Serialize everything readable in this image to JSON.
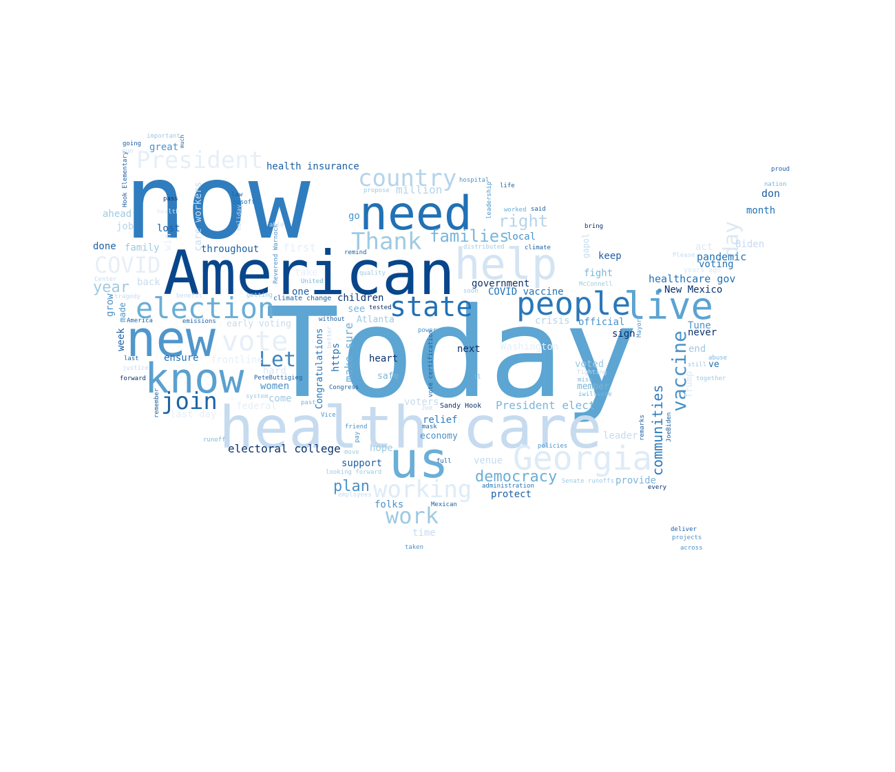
{
  "word_cloud": {
    "shape": "united-states-map",
    "palette": [
      "#08306b",
      "#08519c",
      "#2171b5",
      "#4292c6",
      "#6baed6",
      "#9ecae1",
      "#c6dbef",
      "#deebf7"
    ],
    "words": [
      {
        "text": "Today",
        "color": "#5da5d2"
      },
      {
        "text": "now",
        "color": "#2f7dbf"
      },
      {
        "text": "health care",
        "color": "#c6dbef"
      },
      {
        "text": "American",
        "color": "#08468c"
      },
      {
        "text": "need",
        "color": "#2171b5"
      },
      {
        "text": "us",
        "color": "#6baed6"
      },
      {
        "text": "new",
        "color": "#4f96cc"
      },
      {
        "text": "help",
        "color": "#d4e4f3"
      },
      {
        "text": "know",
        "color": "#5aa0d0"
      },
      {
        "text": "live",
        "color": "#5ba3d3"
      },
      {
        "text": "Georgia",
        "color": "#deebf7"
      },
      {
        "text": "people",
        "color": "#2a77ba"
      },
      {
        "text": "election",
        "color": "#6aaed6"
      },
      {
        "text": "state",
        "color": "#2171b5"
      },
      {
        "text": "country",
        "color": "#b5d4ea"
      },
      {
        "text": "vote",
        "color": "#e6eff8"
      },
      {
        "text": "Thank",
        "color": "#9ecae1"
      },
      {
        "text": "join",
        "color": "#1e64a8"
      },
      {
        "text": "President",
        "color": "#e6eff8"
      },
      {
        "text": "Let",
        "color": "#3d85c2"
      },
      {
        "text": "work",
        "color": "#9ecae1"
      },
      {
        "text": "working",
        "color": "#deebf7"
      },
      {
        "text": "COVID",
        "color": "#e6eff8"
      },
      {
        "text": "vaccine",
        "color": "#4a92c8"
      },
      {
        "text": "day",
        "color": "#dbe9f6"
      },
      {
        "text": "democracy",
        "color": "#6aaed6"
      },
      {
        "text": "families",
        "color": "#7ab6d9"
      },
      {
        "text": "right",
        "color": "#b5d4ea"
      },
      {
        "text": "communities",
        "color": "#2e7abd"
      },
      {
        "text": "year",
        "color": "#9ecae1"
      },
      {
        "text": "plan",
        "color": "#4a92c8"
      },
      {
        "text": "million",
        "color": "#b5d4ea"
      },
      {
        "text": "Biden",
        "color": "#c6dbef"
      },
      {
        "text": "pandemic",
        "color": "#2171b5"
      },
      {
        "text": "healthcare gov",
        "color": "#2171b5"
      },
      {
        "text": "health insurance",
        "color": "#1c5fa3"
      },
      {
        "text": "electoral college",
        "color": "#08306b"
      },
      {
        "text": "President elect",
        "color": "#7ab6d9"
      },
      {
        "text": "COVID vaccine",
        "color": "#2171b5"
      },
      {
        "text": "government",
        "color": "#08306b"
      },
      {
        "text": "New Mexico",
        "color": "#08306b"
      },
      {
        "text": "children",
        "color": "#08306b"
      },
      {
        "text": "heart",
        "color": "#08306b"
      },
      {
        "text": "next",
        "color": "#08306b"
      },
      {
        "text": "make sure",
        "color": "#6aaed6"
      },
      {
        "text": "https",
        "color": "#2171b5"
      },
      {
        "text": "Congratulations",
        "color": "#2171b5"
      },
      {
        "text": "voting",
        "color": "#2171b5"
      },
      {
        "text": "month",
        "color": "#2171b5"
      },
      {
        "text": "don",
        "color": "#1c5fa3"
      },
      {
        "text": "Tune",
        "color": "#4a92c8"
      },
      {
        "text": "never",
        "color": "#08306b"
      },
      {
        "text": "ve",
        "color": "#2171b5"
      },
      {
        "text": "keep",
        "color": "#1c5fa3"
      },
      {
        "text": "fight",
        "color": "#7ab6d9"
      },
      {
        "text": "crisis",
        "color": "#b5d4ea"
      },
      {
        "text": "official",
        "color": "#4a92c8"
      },
      {
        "text": "sign",
        "color": "#08306b"
      },
      {
        "text": "end",
        "color": "#9ecae1"
      },
      {
        "text": "voted",
        "color": "#9ecae1"
      },
      {
        "text": "member",
        "color": "#7ab6d9"
      },
      {
        "text": "Trump",
        "color": "#dbe9f6"
      },
      {
        "text": "act",
        "color": "#dbe9f6"
      },
      {
        "text": "leader",
        "color": "#c6dbef"
      },
      {
        "text": "provide",
        "color": "#7ab6d9"
      },
      {
        "text": "protect",
        "color": "#1c5fa3"
      },
      {
        "text": "support",
        "color": "#1c5fa3"
      },
      {
        "text": "relief",
        "color": "#2e7abd"
      },
      {
        "text": "economy",
        "color": "#4a92c8"
      },
      {
        "text": "hope",
        "color": "#9ecae1"
      },
      {
        "text": "venue",
        "color": "#c6dbef"
      },
      {
        "text": "folks",
        "color": "#4a92c8"
      },
      {
        "text": "time",
        "color": "#c6dbef"
      },
      {
        "text": "voters",
        "color": "#c6dbef"
      },
      {
        "text": "Sandy Hook",
        "color": "#08306b"
      },
      {
        "text": "Atlanta",
        "color": "#9ecae1"
      },
      {
        "text": "see",
        "color": "#7ab6d9"
      },
      {
        "text": "safe",
        "color": "#7ab6d9"
      },
      {
        "text": "one",
        "color": "#1c5fa3"
      },
      {
        "text": "local",
        "color": "#4a92c8"
      },
      {
        "text": "Washington",
        "color": "#e6eff8"
      },
      {
        "text": "first",
        "color": "#e6eff8"
      },
      {
        "text": "go",
        "color": "#4a92c8"
      },
      {
        "text": "throughout",
        "color": "#1c5fa3"
      },
      {
        "text": "care workers",
        "color": "#c6dbef"
      },
      {
        "text": "lost",
        "color": "#1c5fa3"
      },
      {
        "text": "family",
        "color": "#9ecae1"
      },
      {
        "text": "done",
        "color": "#1c5fa3"
      },
      {
        "text": "job",
        "color": "#b5d4ea"
      },
      {
        "text": "ahead",
        "color": "#9ecae1"
      },
      {
        "text": "back",
        "color": "#c6dbef"
      },
      {
        "text": "grow",
        "color": "#4a92c8"
      },
      {
        "text": "made",
        "color": "#4a92c8"
      },
      {
        "text": "week",
        "color": "#1c5fa3"
      },
      {
        "text": "ensure",
        "color": "#2171b5"
      },
      {
        "text": "frontline",
        "color": "#e6eff8"
      },
      {
        "text": "early voting",
        "color": "#c6dbef"
      },
      {
        "text": "hard",
        "color": "#dbe9f6"
      },
      {
        "text": "women",
        "color": "#4a92c8"
      },
      {
        "text": "come",
        "color": "#9ecae1"
      },
      {
        "text": "last day",
        "color": "#e6eff8"
      },
      {
        "text": "federal",
        "color": "#e6eff8"
      },
      {
        "text": "great",
        "color": "#4a92c8"
      },
      {
        "text": "win",
        "color": "#e6eff8"
      },
      {
        "text": "climate change",
        "color": "#1c5fa3"
      },
      {
        "text": "take",
        "color": "#e6eff8"
      },
      {
        "text": "Reverend Warnock",
        "color": "#4a92c8"
      },
      {
        "text": "Hook Elementary",
        "color": "#1c5fa3"
      },
      {
        "text": "going",
        "color": "#1c5fa3"
      },
      {
        "text": "important",
        "color": "#9ecae1"
      },
      {
        "text": "much",
        "color": "#1c5fa3"
      },
      {
        "text": "proud",
        "color": "#1c5fa3"
      },
      {
        "text": "nation",
        "color": "#7ab6d9"
      },
      {
        "text": "hospital",
        "color": "#4a92c8"
      },
      {
        "text": "life",
        "color": "#1c5fa3"
      },
      {
        "text": "leadership",
        "color": "#4a92c8"
      },
      {
        "text": "propose",
        "color": "#9ecae1"
      },
      {
        "text": "law",
        "color": "#1c5fa3"
      },
      {
        "text": "ossoff",
        "color": "#2171b5"
      },
      {
        "text": "pass",
        "color": "#08306b"
      },
      {
        "text": "worked",
        "color": "#6aaed6"
      },
      {
        "text": "said",
        "color": "#1c5fa3"
      },
      {
        "text": "bring",
        "color": "#08306b"
      },
      {
        "text": "distributed",
        "color": "#9ecae1"
      },
      {
        "text": "climate",
        "color": "#1c5fa3"
      },
      {
        "text": "remind",
        "color": "#1c5fa3"
      },
      {
        "text": "quality",
        "color": "#9ecae1"
      },
      {
        "text": "United",
        "color": "#7ab6d9"
      },
      {
        "text": "McConnell",
        "color": "#9ecae1"
      },
      {
        "text": "Please",
        "color": "#c6dbef"
      },
      {
        "text": "tested",
        "color": "#08306b"
      },
      {
        "text": "without",
        "color": "#1c5fa3"
      },
      {
        "text": "emissions",
        "color": "#1c5fa3"
      },
      {
        "text": "America",
        "color": "#1c5fa3"
      },
      {
        "text": "last",
        "color": "#1c5fa3"
      },
      {
        "text": "justice",
        "color": "#c6dbef"
      },
      {
        "text": "forward",
        "color": "#08306b"
      },
      {
        "text": "PeteButtigieg",
        "color": "#1c5fa3"
      },
      {
        "text": "system",
        "color": "#9ecae1"
      },
      {
        "text": "Congress",
        "color": "#1c5fa3"
      },
      {
        "text": "past",
        "color": "#7ab6d9"
      },
      {
        "text": "power",
        "color": "#4a92c8"
      },
      {
        "text": "vote certification",
        "color": "#1c5fa3"
      },
      {
        "text": "Vice",
        "color": "#4a92c8"
      },
      {
        "text": "friend",
        "color": "#4a92c8"
      },
      {
        "text": "mask",
        "color": "#1c5fa3"
      },
      {
        "text": "full",
        "color": "#1c5fa3"
      },
      {
        "text": "pay",
        "color": "#4a92c8"
      },
      {
        "text": "looking forward",
        "color": "#9ecae1"
      },
      {
        "text": "employees",
        "color": "#c6dbef"
      },
      {
        "text": "administration",
        "color": "#2171b5"
      },
      {
        "text": "Mexican",
        "color": "#1c5fa3"
      },
      {
        "text": "Senate runoffs",
        "color": "#9ecae1"
      },
      {
        "text": "every",
        "color": "#08306b"
      },
      {
        "text": "policies",
        "color": "#4a92c8"
      },
      {
        "text": "remarks",
        "color": "#1c5fa3"
      },
      {
        "text": "JoeBiden",
        "color": "#1c5fa3"
      },
      {
        "text": "Mayor",
        "color": "#4a92c8"
      },
      {
        "text": "abuse",
        "color": "#7ab6d9"
      },
      {
        "text": "still",
        "color": "#9ecae1"
      },
      {
        "text": "together",
        "color": "#9ecae1"
      },
      {
        "text": "miss",
        "color": "#7ab6d9"
      },
      {
        "text": "iwillvote",
        "color": "#7ab6d9"
      },
      {
        "text": "fighting",
        "color": "#c6dbef"
      },
      {
        "text": "gapol",
        "color": "#c6dbef"
      },
      {
        "text": "deliver",
        "color": "#1c5fa3"
      },
      {
        "text": "projects",
        "color": "#4a92c8"
      },
      {
        "text": "across",
        "color": "#4a92c8"
      },
      {
        "text": "taken",
        "color": "#4a92c8"
      },
      {
        "text": "runoff",
        "color": "#7ab6d9"
      },
      {
        "text": "remember",
        "color": "#1c5fa3"
      },
      {
        "text": "benefit",
        "color": "#c6dbef"
      },
      {
        "text": "getting",
        "color": "#9ecae1"
      },
      {
        "text": "Center",
        "color": "#c6dbef"
      },
      {
        "text": "tragedy",
        "color": "#c6dbef"
      },
      {
        "text": "soon",
        "color": "#9ecae1"
      },
      {
        "text": "ll",
        "color": "#7ab6d9"
      },
      {
        "text": "better",
        "color": "#c6dbef"
      },
      {
        "text": "able",
        "color": "#c6dbef"
      },
      {
        "text": "holiday",
        "color": "#c6dbef"
      },
      {
        "text": "Joe",
        "color": "#c6dbef"
      },
      {
        "text": "move",
        "color": "#9ecae1"
      },
      {
        "text": "gun",
        "color": "#c6dbef"
      },
      {
        "text": "health",
        "color": "#dbe9f6"
      },
      {
        "text": "years ago",
        "color": "#dbe9f6"
      }
    ]
  }
}
